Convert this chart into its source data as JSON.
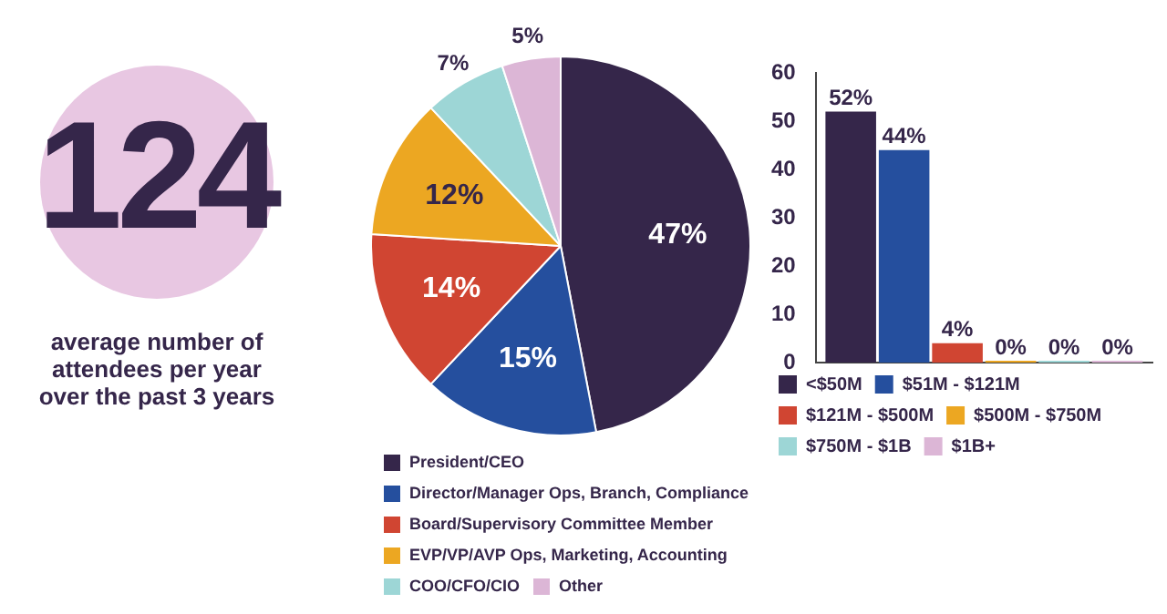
{
  "chart_data": [
    {
      "type": "other",
      "title": "124",
      "annotations": [
        "average number of attendees per year over the past 3 years"
      ]
    },
    {
      "type": "pie",
      "categories": [
        "President/CEO",
        "Director/Manager Ops, Branch, Compliance",
        "Board/Supervisory Committee Member",
        "EVP/VP/AVP Ops, Marketing, Accounting",
        "COO/CFO/CIO",
        "Other"
      ],
      "values": [
        47,
        15,
        14,
        12,
        7,
        5
      ],
      "colors": [
        "#35264a",
        "#254f9e",
        "#d04532",
        "#eca722",
        "#9dd6d6",
        "#dcb6d6"
      ],
      "value_labels": [
        "47%",
        "15%",
        "14%",
        "12%",
        "7%",
        "5%"
      ],
      "legend": "bottom"
    },
    {
      "type": "bar",
      "categories": [
        null
      ],
      "series": [
        {
          "name": "<$50M",
          "color": "#35264a",
          "values": [
            52
          ],
          "value_labels": [
            "52%"
          ]
        },
        {
          "name": "$51M - $121M",
          "color": "#254f9e",
          "values": [
            44
          ],
          "value_labels": [
            "44%"
          ]
        },
        {
          "name": "$121M - $500M",
          "color": "#d04532",
          "values": [
            4
          ],
          "value_labels": [
            "4%"
          ]
        },
        {
          "name": "$500M - $750M",
          "color": "#eca722",
          "values": [
            0
          ],
          "value_labels": [
            "0%"
          ]
        },
        {
          "name": "$750M - $1B",
          "color": "#9dd6d6",
          "values": [
            0
          ],
          "value_labels": [
            "0%"
          ]
        },
        {
          "name": "$1B+",
          "color": "#dcb6d6",
          "values": [
            0
          ],
          "value_labels": [
            "0%"
          ]
        }
      ],
      "ylim": [
        0,
        60
      ],
      "yticks": [
        0,
        10,
        20,
        30,
        40,
        50,
        60
      ],
      "grid": false,
      "legend": "bottom"
    }
  ]
}
